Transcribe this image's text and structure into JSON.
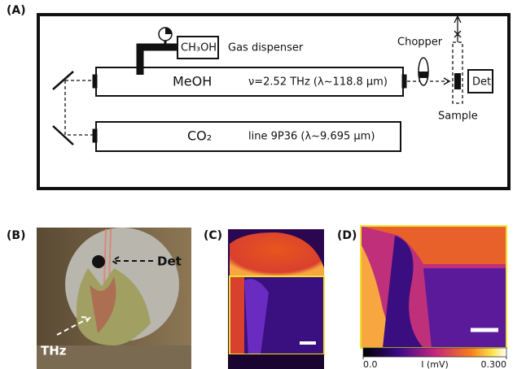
{
  "panel_a": {
    "label": "(A)",
    "dispenser_gas": "CH₃OH",
    "dispenser_label": "Gas dispenser",
    "chopper": "Chopper",
    "meoh_laser": "MeOH",
    "meoh_line": "ν=2.52 THz (λ~118.8 µm)",
    "detector": "Det",
    "sample": "Sample",
    "co2_laser": "CO₂",
    "co2_line": "line 9P36 (λ~9.695 µm)"
  },
  "panel_b": {
    "label": "(B)",
    "det_arrow": "Det",
    "thz_arrow": "THz"
  },
  "panel_c": {
    "label": "(C)"
  },
  "panel_d": {
    "label": "(D)",
    "colorbar": {
      "label": "I (mV)",
      "ticks": [
        {
          "value": 0,
          "label": "0.0"
        },
        {
          "value": 0.3,
          "label": "0.300"
        }
      ]
    }
  }
}
